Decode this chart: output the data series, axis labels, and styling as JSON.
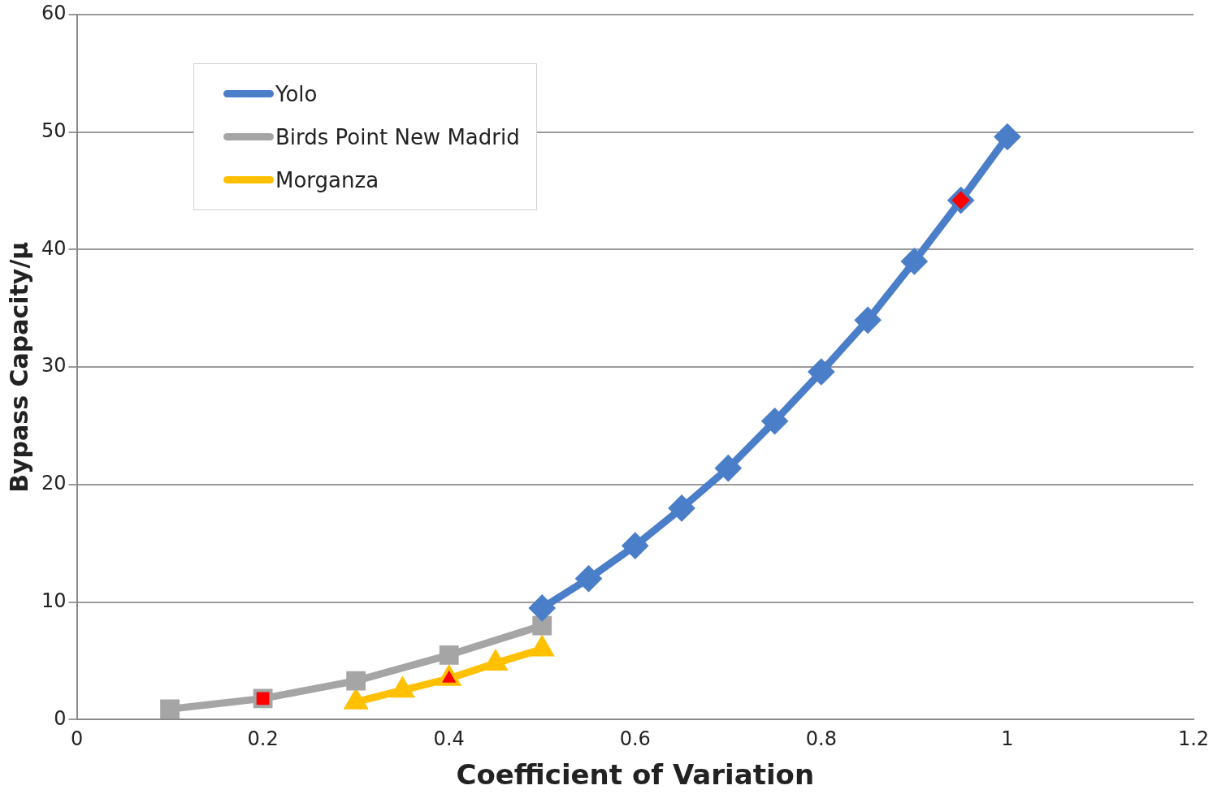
{
  "chart_data": {
    "type": "line",
    "xlabel": "Coefficient of Variation",
    "ylabel": "Bypass Capacity/μ",
    "xlim": [
      0,
      1.2
    ],
    "xticks": [
      0,
      0.2,
      0.4,
      0.6,
      0.8,
      1,
      1.2
    ],
    "ylim": [
      0,
      60
    ],
    "yticks": [
      0,
      10,
      20,
      30,
      40,
      50,
      60
    ],
    "grid": "y",
    "legend": "top left",
    "series": [
      {
        "name": "Yolo",
        "color": "#4a7ec8",
        "marker": "diamond",
        "x": [
          0.5,
          0.55,
          0.6,
          0.65,
          0.7,
          0.75,
          0.8,
          0.85,
          0.9,
          0.95,
          1
        ],
        "values": [
          9.5,
          12,
          14.8,
          18,
          21.4,
          25.4,
          29.6,
          34,
          39,
          44.2,
          49.6
        ],
        "colors": [
          "#4a7ec8",
          "#4a7ec8",
          "#4a7ec8",
          "#4a7ec8",
          "#4a7ec8",
          "#4a7ec8",
          "#4a7ec8",
          "#4a7ec8",
          "#4a7ec8",
          "#ff0000",
          "#4a7ec8"
        ]
      },
      {
        "name": "Birds Point New Madrid",
        "color": "#a5a5a5",
        "marker": "square",
        "x": [
          0.1,
          0.2,
          0.3,
          0.4,
          0.5
        ],
        "values": [
          0.9,
          1.8,
          3.3,
          5.5,
          8
        ],
        "colors": [
          "#a5a5a5",
          "#ff0000",
          "#a5a5a5",
          "#a5a5a5",
          "#a5a5a5"
        ]
      },
      {
        "name": "Morganza",
        "color": "#ffc000",
        "marker": "triangle",
        "x": [
          0.3,
          0.35,
          0.4,
          0.45,
          0.5
        ],
        "values": [
          1.5,
          2.5,
          3.5,
          4.8,
          6
        ],
        "colors": [
          "#ffc000",
          "#ffc000",
          "#ff0000",
          "#ffc000",
          "#ffc000"
        ]
      }
    ]
  }
}
